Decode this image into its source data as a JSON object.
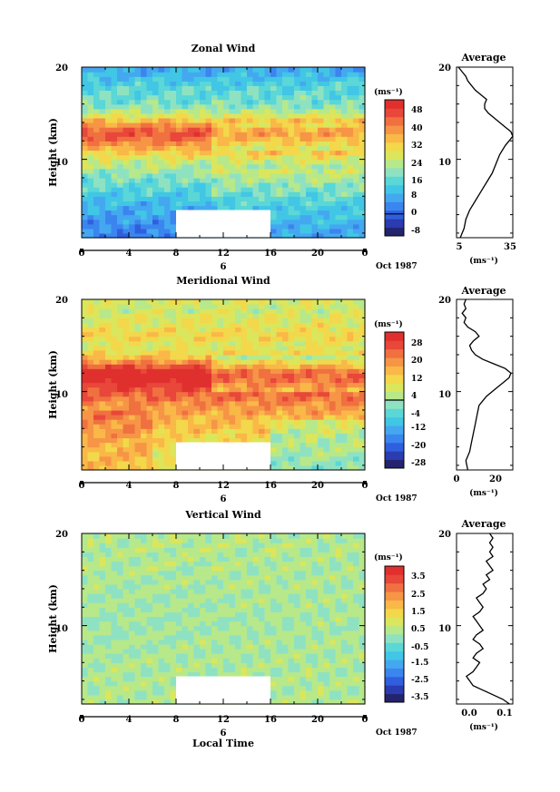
{
  "chart_data": [
    {
      "type": "heatmap",
      "title": "Zonal Wind",
      "ylabel": "Height (km)",
      "x_ticks": [
        "0",
        "4",
        "8",
        "12",
        "16",
        "20",
        "0"
      ],
      "y_ticks": [
        "20",
        "10"
      ],
      "xlim": [
        0,
        24
      ],
      "ylim": [
        1.5,
        20
      ],
      "date_mark": "6",
      "date_label": "Oct 1987",
      "data_gap": {
        "x": [
          8,
          16
        ],
        "y": [
          1.5,
          4.5
        ]
      },
      "colorbar": {
        "unit": "(ms⁻¹)",
        "labels": [
          "48",
          "40",
          "32",
          "24",
          "16",
          "8",
          "0",
          "-8"
        ],
        "min": -10,
        "max": 52,
        "step": 4,
        "zero_line": 0
      },
      "field": {
        "profile_y": [
          1.5,
          3,
          5,
          7,
          8.5,
          10,
          11,
          12,
          13,
          14,
          15,
          16,
          17,
          18,
          19,
          20
        ],
        "profile_v": [
          3,
          5,
          9,
          15,
          20,
          26,
          34,
          41,
          46,
          36,
          24,
          18,
          16,
          14,
          10,
          8
        ],
        "time_mod": "front"
      },
      "average": {
        "title": "Average",
        "unit": "(ms⁻¹)",
        "x_ticks": [
          "5",
          "35"
        ],
        "xlim": [
          5,
          35
        ],
        "y_ticks": [
          "20",
          "10"
        ],
        "ylim": [
          1.5,
          20
        ],
        "y": [
          1.5,
          2.5,
          3.5,
          4.5,
          5.5,
          6.5,
          7.5,
          8.5,
          9.5,
          10.5,
          11.5,
          12,
          12.5,
          13,
          13.5,
          14,
          14.5,
          15,
          15.5,
          16,
          16.5,
          17,
          17.5,
          18,
          18.5,
          19,
          19.5,
          20
        ],
        "x": [
          7,
          9,
          10,
          12,
          15,
          18,
          21,
          24,
          26,
          28,
          31,
          33,
          35,
          34,
          31,
          28,
          25,
          22,
          20,
          20,
          21,
          18,
          15,
          13,
          11,
          10,
          8,
          6
        ]
      }
    },
    {
      "type": "heatmap",
      "title": "Meridional Wind",
      "ylabel": "Height (km)",
      "x_ticks": [
        "0",
        "4",
        "8",
        "12",
        "16",
        "20",
        "0"
      ],
      "y_ticks": [
        "20",
        "10"
      ],
      "xlim": [
        0,
        24
      ],
      "ylim": [
        1.5,
        20
      ],
      "date_mark": "6",
      "date_label": "Oct 1987",
      "data_gap": {
        "x": [
          8,
          16
        ],
        "y": [
          1.5,
          4.5
        ]
      },
      "colorbar": {
        "unit": "(ms⁻¹)",
        "labels": [
          "28",
          "20",
          "12",
          "4",
          "-4",
          "-12",
          "-20",
          "-28"
        ],
        "min": -32,
        "max": 32,
        "step": 4,
        "zero_line": 0
      },
      "field": {
        "profile_y": [
          1.5,
          3,
          5,
          7,
          8.5,
          10,
          11,
          12,
          13,
          14,
          15,
          16,
          17,
          18,
          19,
          20
        ],
        "profile_v": [
          6,
          8,
          10,
          14,
          18,
          24,
          30,
          34,
          22,
          10,
          6,
          10,
          8,
          6,
          4,
          6
        ],
        "time_mod": "late_negative"
      },
      "average": {
        "title": "Average",
        "unit": "(ms⁻¹)",
        "x_ticks": [
          "0",
          "20"
        ],
        "xlim": [
          0,
          30
        ],
        "y_ticks": [
          "20",
          "10"
        ],
        "ylim": [
          1.5,
          20
        ],
        "y": [
          1.5,
          2.5,
          3.5,
          4.5,
          5.5,
          6.5,
          7.5,
          8.5,
          9,
          9.5,
          10,
          10.5,
          11,
          11.5,
          12,
          12.5,
          13,
          13.5,
          14,
          14.5,
          15,
          15.5,
          16,
          16.5,
          17,
          17.5,
          18,
          18.5,
          19,
          19.5,
          20
        ],
        "x": [
          6,
          5,
          7,
          8,
          9,
          10,
          11,
          12,
          14,
          16,
          19,
          22,
          25,
          28,
          29,
          26,
          20,
          14,
          10,
          8,
          7,
          9,
          12,
          10,
          6,
          4,
          5,
          3,
          5,
          4,
          5
        ]
      }
    },
    {
      "type": "heatmap",
      "title": "Vertical Wind",
      "xlabel": "Local Time",
      "ylabel": "Height (km)",
      "x_ticks": [
        "0",
        "4",
        "8",
        "12",
        "16",
        "20",
        "0"
      ],
      "y_ticks": [
        "20",
        "10"
      ],
      "xlim": [
        0,
        24
      ],
      "ylim": [
        1.5,
        20
      ],
      "date_mark": "6",
      "date_label": "Oct 1987",
      "data_gap": {
        "x": [
          8,
          16
        ],
        "y": [
          1.5,
          4.5
        ]
      },
      "colorbar": {
        "unit": "(ms⁻¹)",
        "labels": [
          "3.5",
          "2.5",
          "1.5",
          "0.5",
          "-0.5",
          "-1.5",
          "-2.5",
          "-3.5"
        ],
        "min": -4,
        "max": 4,
        "step": 0.5,
        "zero_line": null
      },
      "field": {
        "profile_y": [
          1.5,
          5,
          10,
          15,
          20
        ],
        "profile_v": [
          0.2,
          0.1,
          0.0,
          0.1,
          0.2
        ],
        "time_mod": "noise"
      },
      "average": {
        "title": "Average",
        "unit": "(ms⁻¹)",
        "x_ticks": [
          "0.0",
          "0.1"
        ],
        "xlim": [
          -0.05,
          0.12
        ],
        "y_ticks": [
          "20",
          "10"
        ],
        "ylim": [
          1.5,
          20
        ],
        "y": [
          1.5,
          2,
          2.5,
          3,
          3.5,
          4,
          4.5,
          5,
          5.5,
          6,
          6.5,
          7,
          7.5,
          8,
          8.5,
          9,
          9.5,
          10,
          10.5,
          11,
          11.5,
          12,
          12.5,
          13,
          13.5,
          14,
          14.5,
          15,
          15.5,
          16,
          16.5,
          17,
          17.5,
          18,
          18.5,
          19,
          19.5,
          20
        ],
        "x": [
          0.11,
          0.09,
          0.06,
          0.03,
          0.0,
          -0.01,
          -0.02,
          0.0,
          0.01,
          0.02,
          0.0,
          0.01,
          0.03,
          0.02,
          0.0,
          0.01,
          0.03,
          0.02,
          0.01,
          0.0,
          0.02,
          0.03,
          0.02,
          0.01,
          0.03,
          0.04,
          0.03,
          0.05,
          0.04,
          0.06,
          0.05,
          0.04,
          0.06,
          0.05,
          0.06,
          0.05,
          0.06,
          0.05
        ]
      }
    }
  ],
  "colors": {
    "scale": [
      "#23236e",
      "#2b3bb0",
      "#2f5fdf",
      "#3b85ef",
      "#44a8f0",
      "#41c6e6",
      "#5ad7d6",
      "#8fe2c1",
      "#b7e88a",
      "#dbe65c",
      "#f2d84a",
      "#f9b847",
      "#f69546",
      "#f07040",
      "#e8473a",
      "#e0302e"
    ]
  }
}
